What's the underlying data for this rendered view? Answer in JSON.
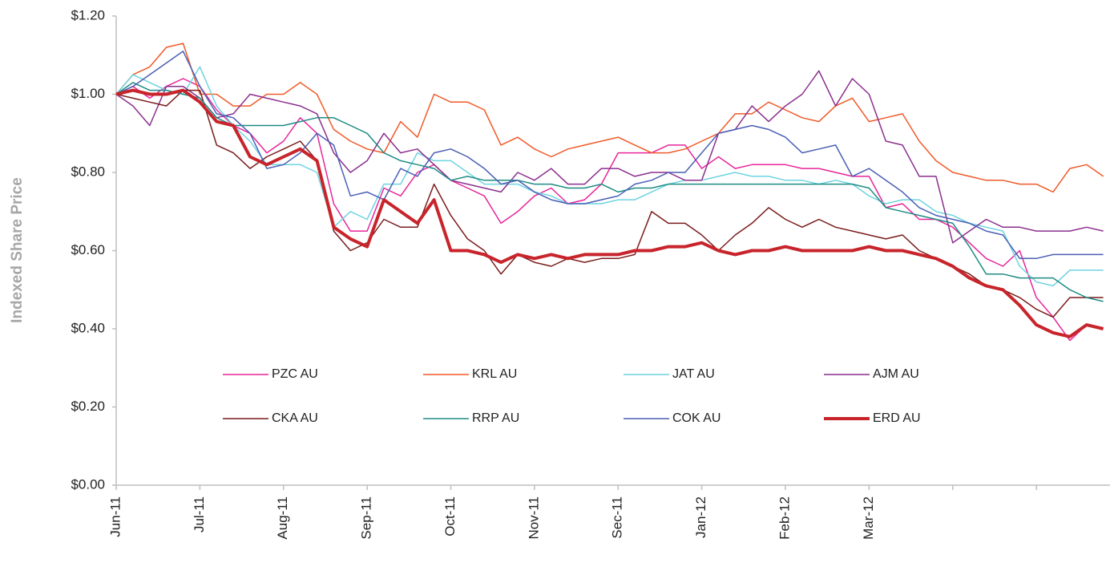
{
  "chart_data": {
    "type": "line",
    "y_label": "Indexed Share Price",
    "categories": [
      "Jun-11",
      null,
      null,
      null,
      null,
      "Jul-11",
      null,
      null,
      null,
      null,
      "Aug-11",
      null,
      null,
      null,
      null,
      "Sep-11",
      null,
      null,
      null,
      null,
      "Oct-11",
      null,
      null,
      null,
      null,
      "Nov-11",
      null,
      null,
      null,
      null,
      "Sec-11",
      null,
      null,
      null,
      null,
      "Jan-12",
      null,
      null,
      null,
      null,
      "Feb-12",
      null,
      null,
      null,
      null,
      "Mar-12",
      null,
      null,
      null,
      null,
      null,
      null,
      null,
      null,
      null,
      null,
      null,
      null,
      null,
      null
    ],
    "xticks": [
      0,
      5,
      10,
      15,
      20,
      25,
      30,
      35,
      40,
      45,
      50,
      55
    ],
    "ylim": [
      0,
      1.2
    ],
    "yticks": [
      {
        "value": 0,
        "label": "$0.00"
      },
      {
        "value": 0.2,
        "label": "$0.20"
      },
      {
        "value": 0.4,
        "label": "$0.40"
      },
      {
        "value": 0.6,
        "label": "$0.60"
      },
      {
        "value": 0.8,
        "label": "$0.80"
      },
      {
        "value": 1.0,
        "label": "$1.00"
      },
      {
        "value": 1.2,
        "label": "$1.20"
      }
    ],
    "grid": false,
    "legend_position": "lower center",
    "series": [
      {
        "name": "PZC AU",
        "color": "#e8259a",
        "width": 1.5,
        "values": [
          1.0,
          1.02,
          0.99,
          1.02,
          1.04,
          1.02,
          0.96,
          0.92,
          0.9,
          0.85,
          0.88,
          0.94,
          0.9,
          0.72,
          0.65,
          0.65,
          0.76,
          0.74,
          0.8,
          0.82,
          0.78,
          0.76,
          0.74,
          0.67,
          0.7,
          0.74,
          0.76,
          0.72,
          0.73,
          0.77,
          0.85,
          0.85,
          0.85,
          0.87,
          0.87,
          0.81,
          0.84,
          0.81,
          0.82,
          0.82,
          0.82,
          0.81,
          0.81,
          0.8,
          0.79,
          0.79,
          0.71,
          0.72,
          0.68,
          0.68,
          0.66,
          0.62,
          0.58,
          0.56,
          0.6,
          0.48,
          0.43,
          0.37,
          0.41,
          0.4
        ]
      },
      {
        "name": "KRL AU",
        "color": "#f05a28",
        "width": 1.5,
        "values": [
          1.0,
          1.05,
          1.07,
          1.12,
          1.13,
          1.0,
          1.0,
          0.97,
          0.97,
          1.0,
          1.0,
          1.03,
          1.0,
          0.91,
          0.88,
          0.86,
          0.85,
          0.93,
          0.89,
          1.0,
          0.98,
          0.98,
          0.96,
          0.87,
          0.89,
          0.86,
          0.84,
          0.86,
          0.87,
          0.88,
          0.89,
          0.87,
          0.85,
          0.85,
          0.86,
          0.88,
          0.9,
          0.95,
          0.95,
          0.98,
          0.96,
          0.94,
          0.93,
          0.97,
          0.99,
          0.93,
          0.94,
          0.95,
          0.88,
          0.83,
          0.8,
          0.79,
          0.78,
          0.78,
          0.77,
          0.77,
          0.75,
          0.81,
          0.82,
          0.79
        ]
      },
      {
        "name": "JAT AU",
        "color": "#6fd3e0",
        "width": 1.5,
        "values": [
          1.0,
          1.05,
          1.03,
          1.01,
          1.0,
          1.07,
          0.97,
          0.92,
          0.88,
          0.82,
          0.82,
          0.82,
          0.8,
          0.66,
          0.7,
          0.68,
          0.77,
          0.77,
          0.85,
          0.83,
          0.83,
          0.8,
          0.77,
          0.77,
          0.77,
          0.75,
          0.74,
          0.72,
          0.72,
          0.72,
          0.73,
          0.73,
          0.75,
          0.77,
          0.78,
          0.78,
          0.79,
          0.8,
          0.79,
          0.79,
          0.78,
          0.78,
          0.77,
          0.78,
          0.77,
          0.74,
          0.72,
          0.73,
          0.73,
          0.7,
          0.69,
          0.67,
          0.66,
          0.65,
          0.56,
          0.52,
          0.51,
          0.55,
          0.55,
          0.55
        ]
      },
      {
        "name": "AJM AU",
        "color": "#8b2f8e",
        "width": 1.5,
        "values": [
          1.0,
          0.97,
          0.92,
          1.02,
          1.02,
          0.99,
          0.94,
          0.95,
          1.0,
          0.99,
          0.98,
          0.97,
          0.95,
          0.85,
          0.8,
          0.83,
          0.9,
          0.85,
          0.86,
          0.82,
          0.78,
          0.77,
          0.76,
          0.75,
          0.8,
          0.78,
          0.81,
          0.77,
          0.77,
          0.81,
          0.81,
          0.79,
          0.8,
          0.8,
          0.78,
          0.78,
          0.9,
          0.91,
          0.97,
          0.93,
          0.97,
          1.0,
          1.06,
          0.97,
          1.04,
          1.0,
          0.88,
          0.87,
          0.79,
          0.79,
          0.62,
          0.65,
          0.68,
          0.66,
          0.66,
          0.65,
          0.65,
          0.65,
          0.66,
          0.65
        ]
      },
      {
        "name": "CKA AU",
        "color": "#7a1c1c",
        "width": 1.5,
        "values": [
          1.0,
          0.99,
          0.98,
          0.97,
          1.01,
          1.01,
          0.87,
          0.85,
          0.81,
          0.84,
          0.86,
          0.88,
          0.83,
          0.65,
          0.6,
          0.62,
          0.68,
          0.66,
          0.66,
          0.77,
          0.69,
          0.63,
          0.6,
          0.54,
          0.59,
          0.57,
          0.56,
          0.58,
          0.57,
          0.58,
          0.58,
          0.59,
          0.7,
          0.67,
          0.67,
          0.64,
          0.6,
          0.64,
          0.67,
          0.71,
          0.68,
          0.66,
          0.68,
          0.66,
          0.65,
          0.64,
          0.63,
          0.64,
          0.6,
          0.58,
          0.56,
          0.54,
          0.51,
          0.5,
          0.48,
          0.45,
          0.43,
          0.48,
          0.48,
          0.48
        ]
      },
      {
        "name": "RRP AU",
        "color": "#1e8c84",
        "width": 1.5,
        "values": [
          1.0,
          1.03,
          1.01,
          1.01,
          1.0,
          0.99,
          0.94,
          0.92,
          0.92,
          0.92,
          0.92,
          0.93,
          0.94,
          0.94,
          0.92,
          0.9,
          0.85,
          0.83,
          0.82,
          0.81,
          0.78,
          0.79,
          0.78,
          0.78,
          0.78,
          0.77,
          0.77,
          0.76,
          0.76,
          0.77,
          0.75,
          0.76,
          0.76,
          0.77,
          0.77,
          0.77,
          0.77,
          0.77,
          0.77,
          0.77,
          0.77,
          0.77,
          0.77,
          0.77,
          0.77,
          0.76,
          0.71,
          0.7,
          0.69,
          0.68,
          0.67,
          0.61,
          0.54,
          0.54,
          0.53,
          0.53,
          0.53,
          0.5,
          0.48,
          0.47
        ]
      },
      {
        "name": "COK AU",
        "color": "#4a5fb4",
        "width": 1.5,
        "values": [
          1.0,
          1.02,
          1.05,
          1.08,
          1.11,
          1.02,
          0.95,
          0.94,
          0.9,
          0.81,
          0.82,
          0.85,
          0.9,
          0.87,
          0.74,
          0.75,
          0.73,
          0.81,
          0.79,
          0.85,
          0.86,
          0.84,
          0.81,
          0.77,
          0.78,
          0.75,
          0.73,
          0.72,
          0.72,
          0.73,
          0.74,
          0.77,
          0.78,
          0.8,
          0.8,
          0.85,
          0.9,
          0.91,
          0.92,
          0.91,
          0.89,
          0.85,
          0.86,
          0.87,
          0.79,
          0.81,
          0.78,
          0.75,
          0.71,
          0.69,
          0.68,
          0.67,
          0.65,
          0.64,
          0.58,
          0.58,
          0.59,
          0.59,
          0.59,
          0.59
        ]
      },
      {
        "name": "ERD AU",
        "color": "#c8242b",
        "width": 4,
        "values": [
          1.0,
          1.01,
          1.0,
          1.0,
          1.01,
          0.98,
          0.93,
          0.92,
          0.84,
          0.82,
          0.84,
          0.86,
          0.83,
          0.66,
          0.63,
          0.61,
          0.73,
          0.7,
          0.67,
          0.73,
          0.6,
          0.6,
          0.59,
          0.57,
          0.59,
          0.58,
          0.59,
          0.58,
          0.59,
          0.59,
          0.59,
          0.6,
          0.6,
          0.61,
          0.61,
          0.62,
          0.6,
          0.59,
          0.6,
          0.6,
          0.61,
          0.6,
          0.6,
          0.6,
          0.6,
          0.61,
          0.6,
          0.6,
          0.59,
          0.58,
          0.56,
          0.53,
          0.51,
          0.5,
          0.46,
          0.41,
          0.39,
          0.38,
          0.41,
          0.4
        ]
      }
    ]
  }
}
